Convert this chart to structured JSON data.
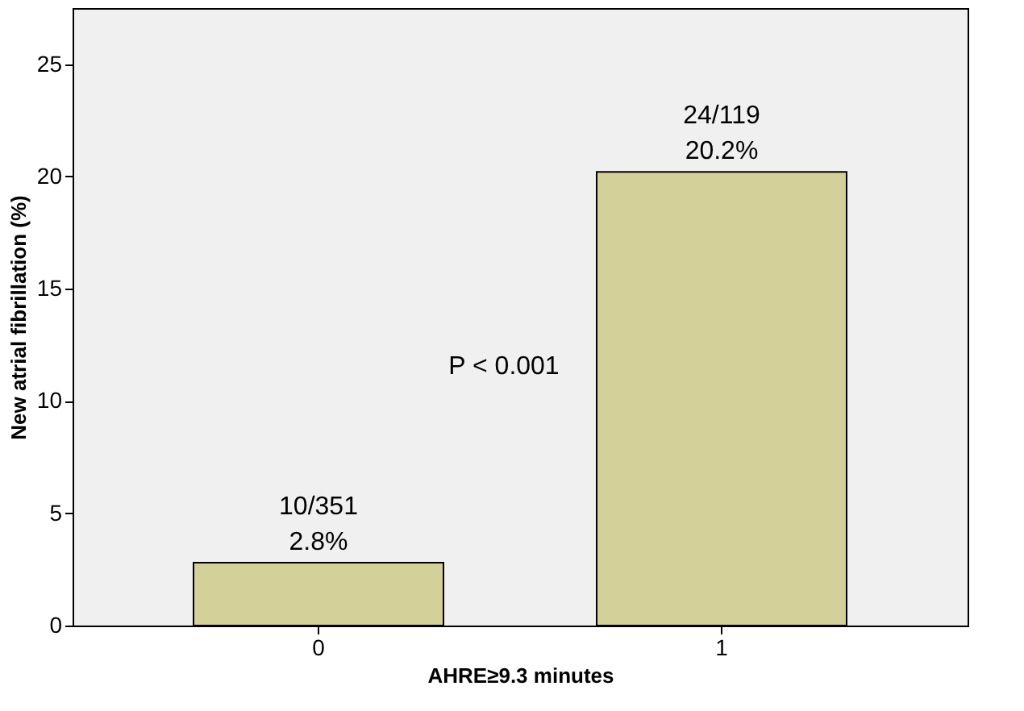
{
  "chart_data": {
    "type": "bar",
    "xlabel": "AHRE≥9.3 minutes",
    "ylabel": "New atrial fibrillation (%)",
    "categories": [
      "0",
      "1"
    ],
    "values": [
      2.8,
      20.2
    ],
    "color": "#d4d09a",
    "value_labels": [
      "10/351\n2.8%",
      "24/119\n20.2%"
    ],
    "ylim": [
      0,
      27.5
    ],
    "yticks": [
      0,
      5,
      10,
      15,
      20,
      25
    ],
    "grid": false,
    "annotations": [
      "P < 0.001"
    ]
  }
}
